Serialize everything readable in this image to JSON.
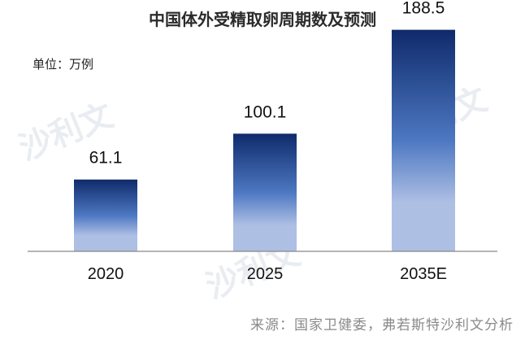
{
  "chart_data": {
    "type": "bar",
    "title": "中国体外受精取卵周期数及预测",
    "unit": "单位：万例",
    "categories": [
      "2020",
      "2025",
      "2035E"
    ],
    "values": [
      61.1,
      100.1,
      188.5
    ],
    "value_labels": [
      "61.1",
      "100.1",
      "188.5"
    ],
    "ylim": [
      0,
      200
    ],
    "grid": false,
    "legend": "none",
    "source": "来源：国家卫健委，弗若斯特沙利文分析"
  },
  "colors": {
    "bar_top": "#0f2a6b",
    "bar_mid": "#4d78c2",
    "bar_bottom": "#aebfe4",
    "axis": "#888888",
    "text": "#111111"
  },
  "watermark": {
    "text": "沙利文"
  }
}
